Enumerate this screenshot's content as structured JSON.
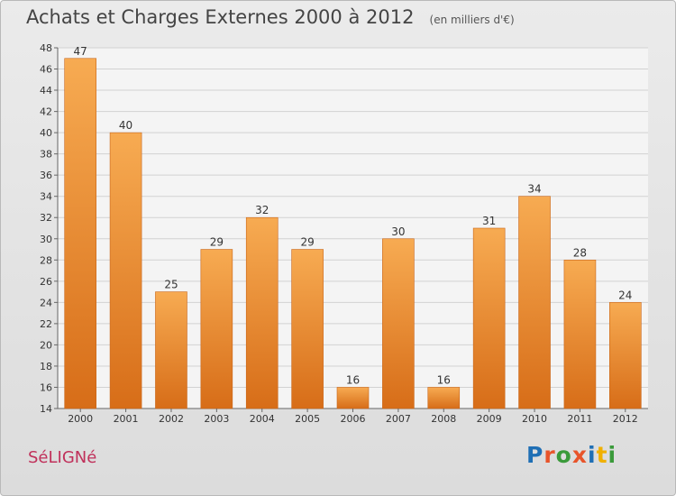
{
  "header": {
    "title": "Achats et Charges Externes 2000 à 2012",
    "subtitle": "(en milliers d'€)"
  },
  "footer": {
    "commune": "SéLIGNé",
    "logo": [
      {
        "ch": "P",
        "color": "#1f6fb5"
      },
      {
        "ch": "r",
        "color": "#e8542a"
      },
      {
        "ch": "o",
        "color": "#3a9a3a"
      },
      {
        "ch": "x",
        "color": "#e8542a"
      },
      {
        "ch": "i",
        "color": "#1f6fb5"
      },
      {
        "ch": "t",
        "color": "#f0b000"
      },
      {
        "ch": "i",
        "color": "#3a9a3a"
      }
    ]
  },
  "colors": {
    "bar_light": "#f7ab52",
    "bar_dark": "#d76d18",
    "plot_bg": "#f4f4f4",
    "grid": "#d2d2d2"
  },
  "chart_data": {
    "type": "bar",
    "title": "Achats et Charges Externes 2000 à 2012",
    "subtitle": "(en milliers d'€)",
    "categories": [
      "2000",
      "2001",
      "2002",
      "2003",
      "2004",
      "2005",
      "2006",
      "2007",
      "2008",
      "2009",
      "2010",
      "2011",
      "2012"
    ],
    "values": [
      47,
      40,
      25,
      29,
      32,
      29,
      16,
      30,
      16,
      31,
      34,
      28,
      24
    ],
    "ylim": [
      14,
      48
    ],
    "yticks": [
      14,
      16,
      18,
      20,
      22,
      24,
      26,
      28,
      30,
      32,
      34,
      36,
      38,
      40,
      42,
      44,
      46,
      48
    ],
    "grid": true,
    "xlabel": "",
    "ylabel": ""
  }
}
